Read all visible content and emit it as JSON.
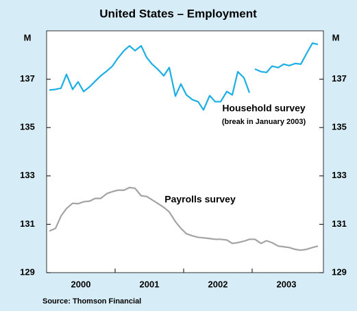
{
  "chart_data": {
    "type": "line",
    "title": "United States – Employment",
    "y_label": "M",
    "y2_label": "M",
    "source": "Source: Thomson Financial",
    "annotations": [
      "Household survey",
      "(break in January 2003)",
      "Payrolls survey"
    ],
    "xlim": [
      2000,
      2004.04
    ],
    "xticks": [
      {
        "value": 2000.5,
        "label": "2000"
      },
      {
        "value": 2001.5,
        "label": "2001"
      },
      {
        "value": 2002.5,
        "label": "2002"
      },
      {
        "value": 2003.5,
        "label": "2003"
      }
    ],
    "ylim": [
      129,
      139
    ],
    "yticks": [
      129,
      131,
      133,
      135,
      137
    ],
    "y2lim": [
      129,
      139
    ],
    "y2ticks": [
      129,
      131,
      133,
      135,
      137
    ],
    "series": [
      {
        "name": "Household survey",
        "color": "#1aaee5",
        "x": [
          2000.04,
          2000.13,
          2000.21,
          2000.29,
          2000.38,
          2000.46,
          2000.54,
          2000.63,
          2000.71,
          2000.79,
          2000.88,
          2000.96,
          2001.04,
          2001.13,
          2001.21,
          2001.29,
          2001.38,
          2001.46,
          2001.54,
          2001.63,
          2001.71,
          2001.79,
          2001.88,
          2001.96,
          2002.04,
          2002.13,
          2002.21,
          2002.29,
          2002.38,
          2002.46,
          2002.54,
          2002.63,
          2002.71,
          2002.79,
          2002.88,
          2002.96,
          2003.0,
          2003.04,
          2003.13,
          2003.21,
          2003.29,
          2003.38,
          2003.46,
          2003.54,
          2003.63,
          2003.71,
          2003.79,
          2003.88,
          2003.96
        ],
        "values": [
          136.55,
          136.58,
          136.63,
          137.2,
          136.58,
          136.89,
          136.49,
          136.69,
          136.92,
          137.14,
          137.34,
          137.54,
          137.87,
          138.18,
          138.38,
          138.18,
          138.38,
          137.9,
          137.62,
          137.39,
          137.14,
          137.48,
          136.3,
          136.8,
          136.35,
          136.15,
          136.07,
          135.73,
          136.32,
          136.07,
          136.07,
          136.49,
          136.35,
          137.31,
          137.06,
          136.44,
          null,
          137.42,
          137.31,
          137.28,
          137.54,
          137.48,
          137.62,
          137.56,
          137.65,
          137.62,
          138.04,
          138.49,
          138.44
        ]
      },
      {
        "name": "Payrolls survey",
        "color": "#a3a3a3",
        "x": [
          2000.04,
          2000.13,
          2000.21,
          2000.29,
          2000.38,
          2000.46,
          2000.54,
          2000.63,
          2000.71,
          2000.79,
          2000.88,
          2000.96,
          2001.04,
          2001.13,
          2001.21,
          2001.29,
          2001.38,
          2001.46,
          2001.54,
          2001.63,
          2001.71,
          2001.79,
          2001.88,
          2001.96,
          2002.04,
          2002.13,
          2002.21,
          2002.29,
          2002.38,
          2002.46,
          2002.54,
          2002.63,
          2002.71,
          2002.79,
          2002.88,
          2002.96,
          2003.04,
          2003.13,
          2003.21,
          2003.29,
          2003.38,
          2003.46,
          2003.54,
          2003.63,
          2003.71,
          2003.79,
          2003.88,
          2003.96
        ],
        "values": [
          130.72,
          130.83,
          131.34,
          131.65,
          131.87,
          131.85,
          131.93,
          131.96,
          132.07,
          132.07,
          132.27,
          132.35,
          132.41,
          132.41,
          132.52,
          132.49,
          132.18,
          132.15,
          132.01,
          131.85,
          131.7,
          131.51,
          131.11,
          130.83,
          130.61,
          130.52,
          130.46,
          130.44,
          130.41,
          130.38,
          130.38,
          130.35,
          130.21,
          130.24,
          130.3,
          130.38,
          130.38,
          130.21,
          130.32,
          130.24,
          130.1,
          130.07,
          130.04,
          129.96,
          129.93,
          129.96,
          130.04,
          130.1
        ]
      }
    ]
  }
}
